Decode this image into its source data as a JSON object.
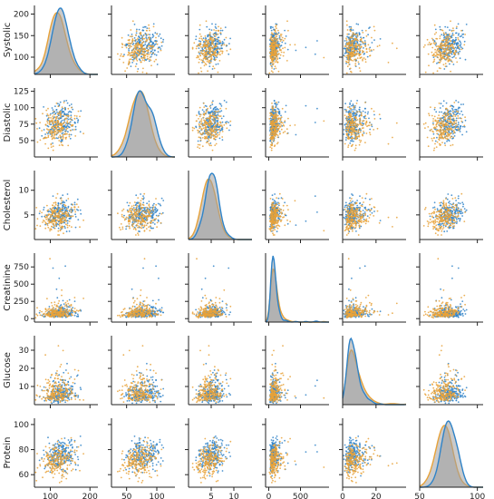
{
  "chart_data": {
    "type": "scatter",
    "variables": [
      {
        "name": "Systolic",
        "range": [
          60,
          220
        ],
        "ticks": [
          100,
          150,
          200
        ],
        "xticks": [
          100,
          200
        ]
      },
      {
        "name": "Diastolic",
        "range": [
          25,
          130
        ],
        "ticks": [
          50,
          75,
          100,
          125
        ],
        "xticks": [
          50,
          100
        ]
      },
      {
        "name": "Cholesterol",
        "range": [
          0,
          14
        ],
        "ticks": [
          5,
          10
        ],
        "xticks": [
          5,
          10
        ]
      },
      {
        "name": "Creatinine",
        "range": [
          -50,
          950
        ],
        "ticks": [
          0,
          250,
          500,
          750
        ],
        "xticks": [
          0,
          500
        ]
      },
      {
        "name": "Glucose",
        "range": [
          0,
          38
        ],
        "ticks": [
          10,
          20,
          30
        ],
        "xticks": [
          0,
          20
        ]
      },
      {
        "name": "Protein",
        "range": [
          50,
          105
        ],
        "ticks": [
          60,
          80,
          100
        ],
        "xticks": [
          50,
          100
        ]
      }
    ],
    "groups": [
      {
        "color": "#2f83c8",
        "means": [
          126,
          77,
          5.2,
          85,
          7.0,
          76
        ],
        "sds": [
          20,
          14,
          1.4,
          55,
          3.0,
          6
        ]
      },
      {
        "color": "#e7a23a",
        "means": [
          120,
          72,
          4.6,
          95,
          8.0,
          71
        ],
        "sds": [
          22,
          15,
          1.6,
          70,
          4.2,
          7
        ]
      }
    ],
    "kde_fill": "#9e9e9e",
    "points_per_group": 220,
    "diagonal": "kde"
  }
}
